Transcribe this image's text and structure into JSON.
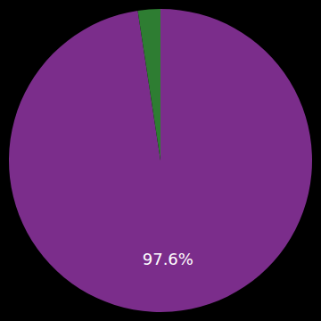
{
  "chart_data": {
    "type": "pie",
    "values": [
      97.6,
      2.4
    ],
    "value_labels": [
      "97.6%",
      null
    ],
    "colors": [
      "#7b2d8b",
      "#2e7d32"
    ]
  }
}
